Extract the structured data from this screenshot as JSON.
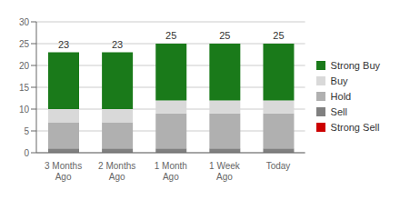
{
  "chart_data": {
    "type": "bar",
    "stacked": true,
    "categories": [
      "3 Months\nAgo",
      "2 Months\nAgo",
      "1 Month\nAgo",
      "1 Week\nAgo",
      "Today"
    ],
    "series": [
      {
        "name": "Strong Sell",
        "color": "#cc0000",
        "values": [
          0,
          0,
          0,
          0,
          0
        ]
      },
      {
        "name": "Sell",
        "color": "#808080",
        "values": [
          1,
          1,
          1,
          1,
          1
        ]
      },
      {
        "name": "Hold",
        "color": "#b0b0b0",
        "values": [
          6,
          6,
          8,
          8,
          8
        ]
      },
      {
        "name": "Buy",
        "color": "#d9d9d9",
        "values": [
          3,
          3,
          3,
          3,
          3
        ]
      },
      {
        "name": "Strong Buy",
        "color": "#1a7a1a",
        "values": [
          13,
          13,
          13,
          13,
          13
        ]
      }
    ],
    "totals": [
      23,
      23,
      25,
      25,
      25
    ],
    "ylim": [
      0,
      30
    ],
    "yticks": [
      0,
      5,
      10,
      15,
      20,
      25,
      30
    ],
    "grid": true,
    "legend": "right"
  }
}
